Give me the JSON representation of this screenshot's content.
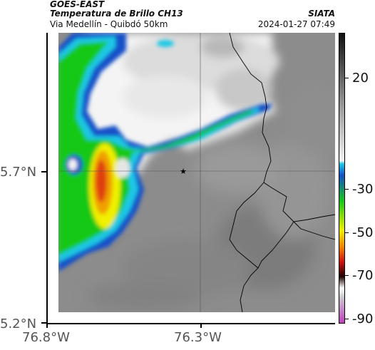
{
  "header": {
    "satellite": "GOES-EAST",
    "product": "Temperatura de Brillo CH13",
    "route": "Via Medellín - Quibdó 50km",
    "agency": "SIATA",
    "timestamp": "2024-01-27 07:49"
  },
  "axes": {
    "lat_labels": [
      "5.7°N",
      "5.2°N"
    ],
    "lon_labels": [
      "76.8°W",
      "76.3°W"
    ]
  },
  "colorbar": {
    "tick_labels": [
      "20",
      "-30",
      "-50",
      "-70",
      "-90"
    ],
    "colors": {
      "top": "#111111",
      "grey_mid": "#9a9a9a",
      "light": "#f2f2f2",
      "cyan": "#1ec8e6",
      "blue": "#1450c8",
      "green": "#18c818",
      "yellow": "#f0f000",
      "orange": "#f08000",
      "red": "#d01010",
      "dark": "#200000",
      "magenta": "#c040c0"
    }
  },
  "map": {
    "marker": "star-icon",
    "surface_color": "#8c8c8c",
    "border_color": "#000000"
  }
}
